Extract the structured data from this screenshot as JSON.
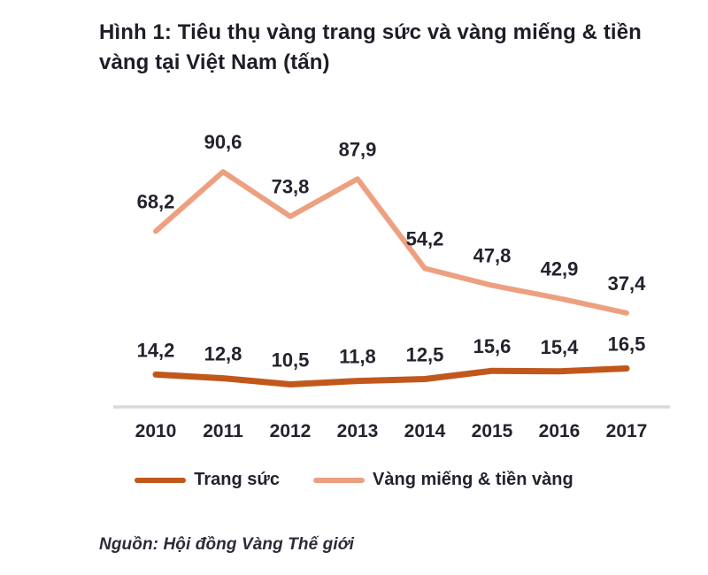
{
  "figure": {
    "title": "Hình 1: Tiêu thụ vàng trang sức và vàng miếng & tiền vàng tại Việt Nam (tấn)",
    "source": "Nguồn: Hội đồng Vàng Thế giới"
  },
  "chart_data": {
    "type": "line",
    "title": "Hình 1: Tiêu thụ vàng trang sức và vàng miếng & tiền vàng tại Việt Nam (tấn)",
    "categories": [
      "2010",
      "2011",
      "2012",
      "2013",
      "2014",
      "2015",
      "2016",
      "2017"
    ],
    "series": [
      {
        "name": "Trang sức",
        "values": [
          14.2,
          12.8,
          10.5,
          11.8,
          12.5,
          15.6,
          15.4,
          16.5
        ],
        "labels": [
          "14,2",
          "12,8",
          "10,5",
          "11,8",
          "12,5",
          "15,6",
          "15,4",
          "16,5"
        ],
        "color": "#c2571b"
      },
      {
        "name": "Vàng miếng & tiền vàng",
        "values": [
          68.2,
          90.6,
          73.8,
          87.9,
          54.2,
          47.8,
          42.9,
          37.4
        ],
        "labels": [
          "68,2",
          "90,6",
          "73,8",
          "87,9",
          "54,2",
          "47,8",
          "42,9",
          "37,4"
        ],
        "color": "#eda080"
      }
    ],
    "xlabel": "",
    "ylabel": "",
    "unit": "tấn",
    "ylim": [
      0,
      100
    ],
    "grid": false,
    "data_labels": true,
    "legend_position": "bottom",
    "axis_line_color": "#d9d9d9",
    "label_color": "#23232e"
  }
}
